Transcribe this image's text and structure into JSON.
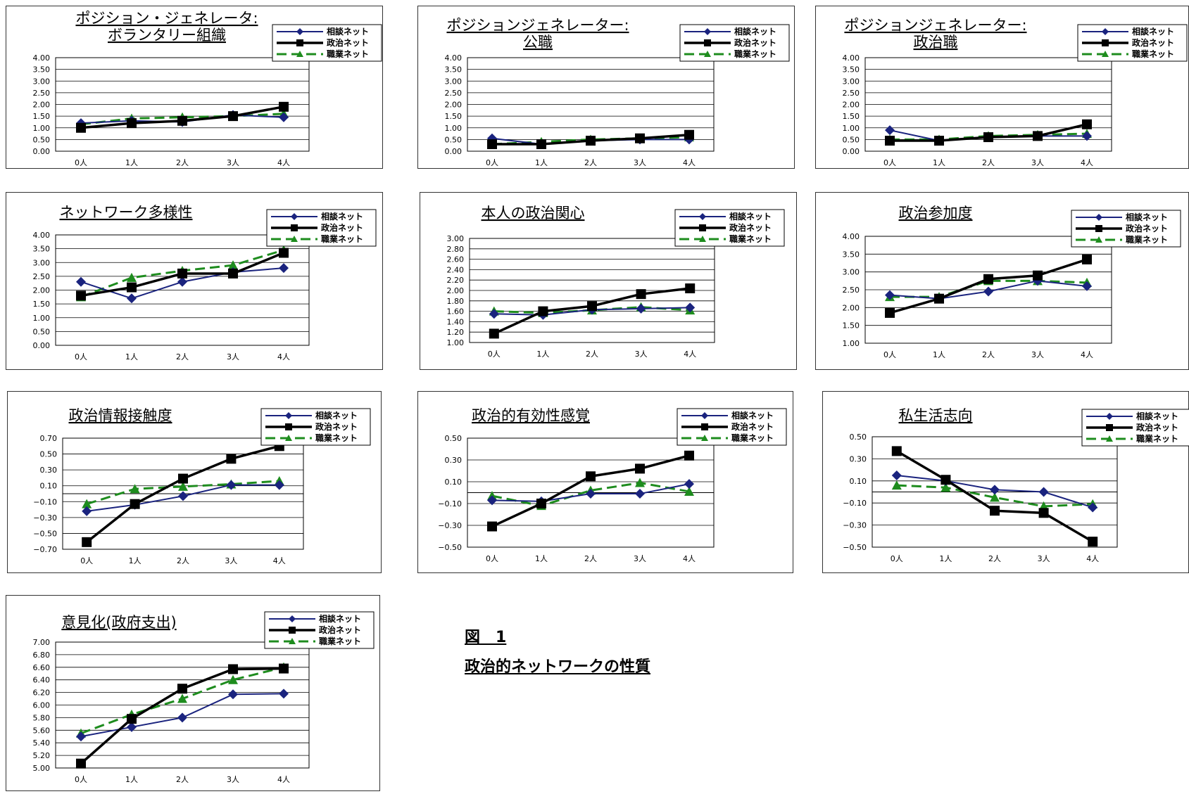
{
  "figure": {
    "label": "図　1",
    "caption": "政治的ネットワークの性質"
  },
  "colors": {
    "series": [
      "#1a237e",
      "#000000",
      "#1e8c1e"
    ]
  },
  "legend": [
    "相談ネット",
    "政治ネット",
    "職業ネット"
  ],
  "chart_data": [
    {
      "type": "line",
      "title": [
        "ポジション・ジェネレータ:",
        "ボランタリー組織"
      ],
      "categories": [
        "0人",
        "1人",
        "2人",
        "3人",
        "4人"
      ],
      "ylim": [
        0,
        4
      ],
      "yticks": [
        "4.00",
        "3.50",
        "3.00",
        "2.50",
        "2.00",
        "1.50",
        "1.00",
        "0.50",
        "0.00"
      ],
      "series": [
        {
          "name": "相談ネット",
          "values": [
            1.2,
            1.3,
            1.25,
            1.55,
            1.45
          ]
        },
        {
          "name": "政治ネット",
          "values": [
            1.0,
            1.2,
            1.3,
            1.5,
            1.9
          ]
        },
        {
          "name": "職業ネット",
          "values": [
            1.15,
            1.4,
            1.45,
            1.5,
            1.6
          ]
        }
      ]
    },
    {
      "type": "line",
      "title": [
        "ポジションジェネレーター:",
        "公職"
      ],
      "categories": [
        "0人",
        "1人",
        "2人",
        "3人",
        "4人"
      ],
      "ylim": [
        0,
        4
      ],
      "yticks": [
        "4.00",
        "3.50",
        "3.00",
        "2.50",
        "2.00",
        "1.50",
        "1.00",
        "0.50",
        "0.00"
      ],
      "series": [
        {
          "name": "相談ネット",
          "values": [
            0.55,
            0.3,
            0.45,
            0.5,
            0.5
          ]
        },
        {
          "name": "政治ネット",
          "values": [
            0.3,
            0.3,
            0.45,
            0.55,
            0.7
          ]
        },
        {
          "name": "職業ネット",
          "values": [
            0.3,
            0.4,
            0.5,
            0.55,
            0.6
          ]
        }
      ]
    },
    {
      "type": "line",
      "title": [
        "ポジションジェネレーター:",
        "政治職"
      ],
      "categories": [
        "0人",
        "1人",
        "2人",
        "3人",
        "4人"
      ],
      "ylim": [
        0,
        4
      ],
      "yticks": [
        "4.00",
        "3.50",
        "3.00",
        "2.50",
        "2.00",
        "1.50",
        "1.00",
        "0.50",
        "0.00"
      ],
      "series": [
        {
          "name": "相談ネット",
          "values": [
            0.9,
            0.45,
            0.6,
            0.65,
            0.65
          ]
        },
        {
          "name": "政治ネット",
          "values": [
            0.45,
            0.45,
            0.6,
            0.65,
            1.15
          ]
        },
        {
          "name": "職業ネット",
          "values": [
            0.5,
            0.5,
            0.65,
            0.7,
            0.75
          ]
        }
      ]
    },
    {
      "type": "line",
      "title": [
        "ネットワーク多様性"
      ],
      "categories": [
        "0人",
        "1人",
        "2人",
        "3人",
        "4人"
      ],
      "ylim": [
        0,
        4
      ],
      "yticks": [
        "4.00",
        "3.50",
        "3.00",
        "2.50",
        "2.00",
        "1.50",
        "1.00",
        "0.50",
        "0.00"
      ],
      "series": [
        {
          "name": "相談ネット",
          "values": [
            2.3,
            1.7,
            2.3,
            2.65,
            2.8
          ]
        },
        {
          "name": "政治ネット",
          "values": [
            1.8,
            2.1,
            2.6,
            2.6,
            3.35
          ]
        },
        {
          "name": "職業ネット",
          "values": [
            1.75,
            2.45,
            2.7,
            2.9,
            3.45
          ]
        }
      ]
    },
    {
      "type": "line",
      "title": [
        "本人の政治関心"
      ],
      "categories": [
        "0人",
        "1人",
        "2人",
        "3人",
        "4人"
      ],
      "ylim": [
        1,
        3
      ],
      "yticks": [
        "3.00",
        "2.80",
        "2.60",
        "2.40",
        "2.20",
        "2.00",
        "1.80",
        "1.60",
        "1.40",
        "1.20",
        "1.00"
      ],
      "series": [
        {
          "name": "相談ネット",
          "values": [
            1.55,
            1.53,
            1.63,
            1.65,
            1.67
          ]
        },
        {
          "name": "政治ネット",
          "values": [
            1.17,
            1.6,
            1.7,
            1.93,
            2.04
          ]
        },
        {
          "name": "職業ネット",
          "values": [
            1.6,
            1.57,
            1.62,
            1.68,
            1.62
          ]
        }
      ]
    },
    {
      "type": "line",
      "title": [
        "政治参加度"
      ],
      "categories": [
        "0人",
        "1人",
        "2人",
        "3人",
        "4人"
      ],
      "ylim": [
        1,
        4
      ],
      "yticks": [
        "4.00",
        "3.50",
        "3.00",
        "2.50",
        "2.00",
        "1.50",
        "1.00"
      ],
      "series": [
        {
          "name": "相談ネット",
          "values": [
            2.35,
            2.25,
            2.45,
            2.75,
            2.6
          ]
        },
        {
          "name": "政治ネット",
          "values": [
            1.85,
            2.25,
            2.8,
            2.9,
            3.35
          ]
        },
        {
          "name": "職業ネット",
          "values": [
            2.3,
            2.3,
            2.75,
            2.75,
            2.7
          ]
        }
      ]
    },
    {
      "type": "line",
      "title": [
        "政治情報接触度"
      ],
      "categories": [
        "0人",
        "1人",
        "2人",
        "3人",
        "4人"
      ],
      "ylim": [
        -0.7,
        0.7
      ],
      "yticks": [
        "0.70",
        "0.50",
        "0.30",
        "0.10",
        "−0.10",
        "−0.30",
        "−0.50",
        "−0.70"
      ],
      "series": [
        {
          "name": "相談ネット",
          "values": [
            -0.22,
            -0.14,
            -0.03,
            0.11,
            0.11
          ]
        },
        {
          "name": "政治ネット",
          "values": [
            -0.61,
            -0.13,
            0.19,
            0.44,
            0.6
          ]
        },
        {
          "name": "職業ネット",
          "values": [
            -0.13,
            0.06,
            0.09,
            0.12,
            0.16
          ]
        }
      ]
    },
    {
      "type": "line",
      "title": [
        "政治的有効性感覚"
      ],
      "categories": [
        "0人",
        "1人",
        "2人",
        "3人",
        "4人"
      ],
      "ylim": [
        -0.5,
        0.5
      ],
      "yticks": [
        "0.50",
        "0.30",
        "0.10",
        "−0.10",
        "−0.30",
        "−0.50"
      ],
      "series": [
        {
          "name": "相談ネット",
          "values": [
            -0.07,
            -0.08,
            -0.01,
            -0.01,
            0.08
          ]
        },
        {
          "name": "政治ネット",
          "values": [
            -0.31,
            -0.1,
            0.15,
            0.22,
            0.34
          ]
        },
        {
          "name": "職業ネット",
          "values": [
            -0.03,
            -0.12,
            0.02,
            0.09,
            0.01
          ]
        }
      ]
    },
    {
      "type": "line",
      "title": [
        "私生活志向"
      ],
      "categories": [
        "0人",
        "1人",
        "2人",
        "3人",
        "4人"
      ],
      "ylim": [
        -0.5,
        0.5
      ],
      "yticks": [
        "0.50",
        "0.30",
        "0.10",
        "−0.10",
        "−0.30",
        "−0.50"
      ],
      "series": [
        {
          "name": "相談ネット",
          "values": [
            0.15,
            0.1,
            0.02,
            0.0,
            -0.14
          ]
        },
        {
          "name": "政治ネット",
          "values": [
            0.37,
            0.11,
            -0.17,
            -0.19,
            -0.45
          ]
        },
        {
          "name": "職業ネット",
          "values": [
            0.06,
            0.04,
            -0.05,
            -0.13,
            -0.11
          ]
        }
      ]
    },
    {
      "type": "line",
      "title": [
        "意見化(政府支出)"
      ],
      "categories": [
        "0人",
        "1人",
        "2人",
        "3人",
        "4人"
      ],
      "ylim": [
        5,
        7
      ],
      "yticks": [
        "7.00",
        "6.80",
        "6.60",
        "6.40",
        "6.20",
        "6.00",
        "5.80",
        "5.60",
        "5.40",
        "5.20",
        "5.00"
      ],
      "series": [
        {
          "name": "相談ネット",
          "values": [
            5.5,
            5.65,
            5.8,
            6.17,
            6.18
          ]
        },
        {
          "name": "政治ネット",
          "values": [
            5.07,
            5.78,
            6.26,
            6.57,
            6.58
          ]
        },
        {
          "name": "職業ネット",
          "values": [
            5.55,
            5.85,
            6.1,
            6.4,
            6.6
          ]
        }
      ]
    }
  ]
}
